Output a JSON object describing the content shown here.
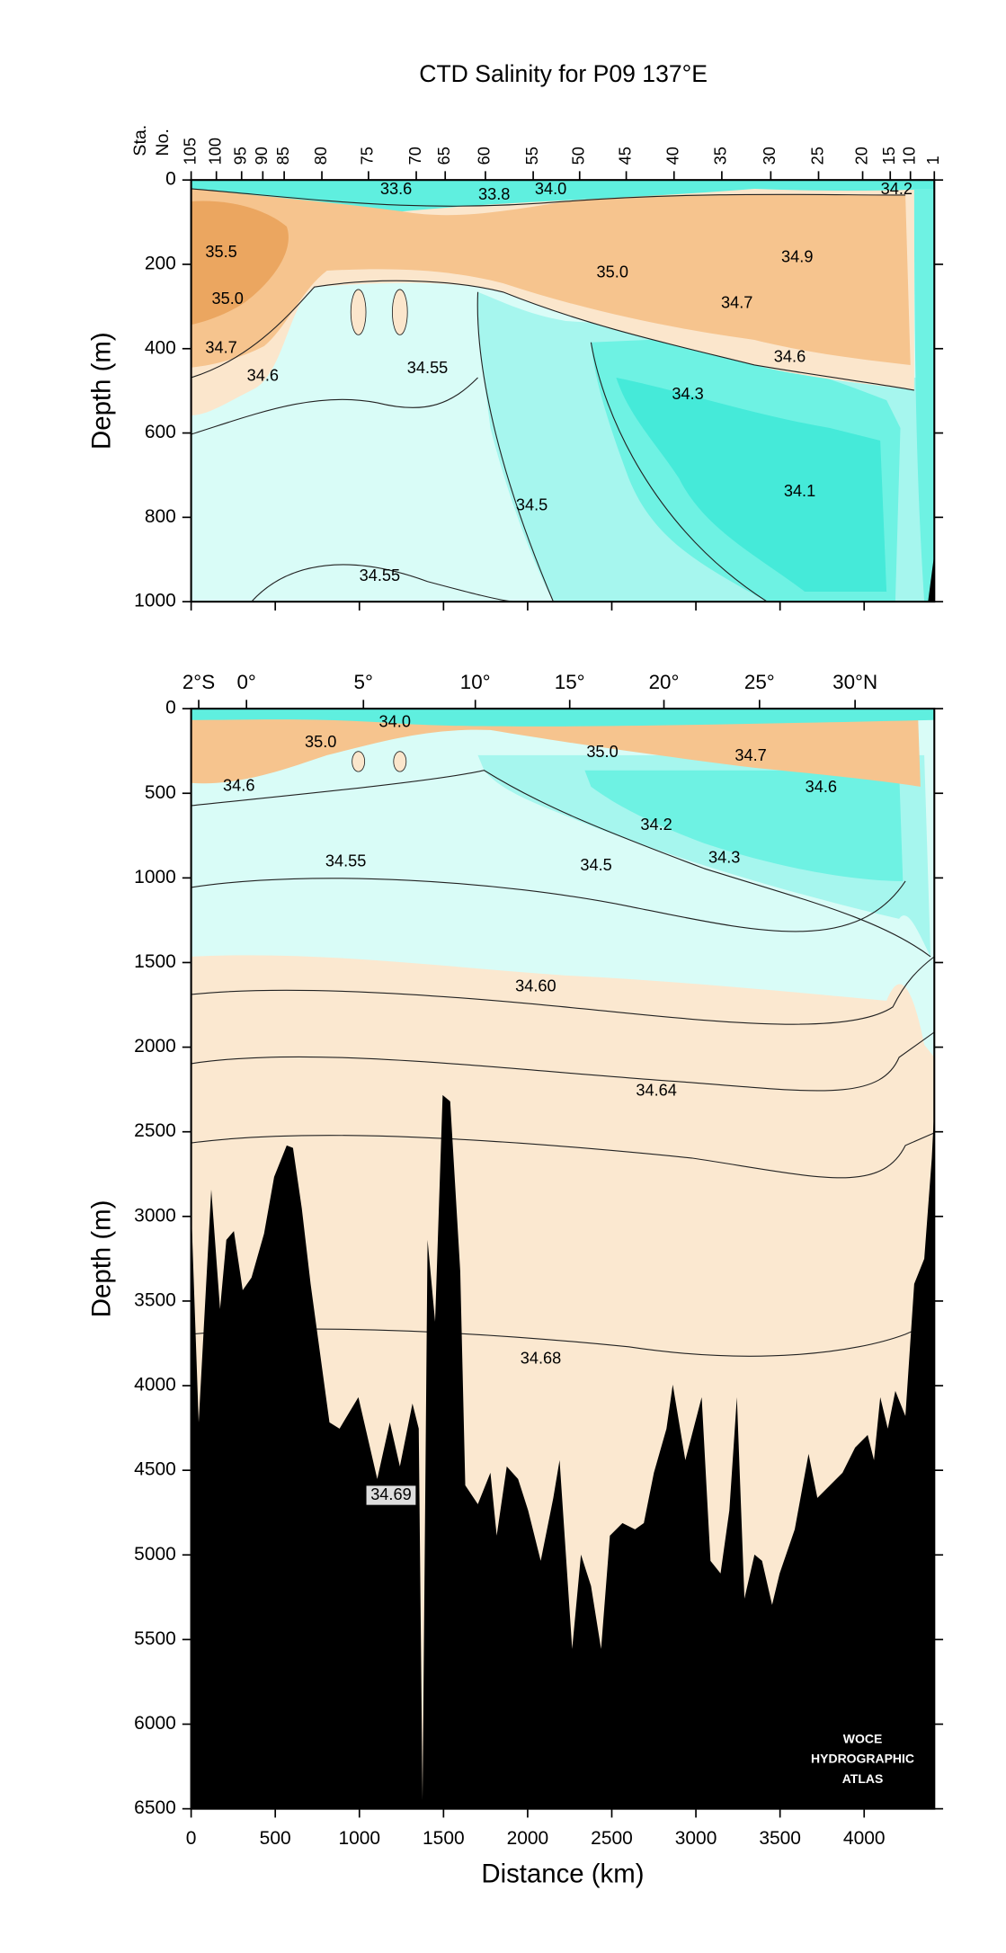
{
  "chart_data": [
    {
      "type": "contour",
      "title": "CTD Salinity for P09 137°E",
      "ylabel": "Depth (m)",
      "station_label": [
        "Sta.",
        "No."
      ],
      "xlim": [
        0,
        4417
      ],
      "ylim": [
        1000,
        0
      ],
      "yticks": [
        0,
        200,
        400,
        600,
        800,
        1000
      ],
      "stations": [
        {
          "value": 0,
          "label": "105"
        },
        {
          "value": 150,
          "label": "100"
        },
        {
          "value": 300,
          "label": "95"
        },
        {
          "value": 426,
          "label": "90"
        },
        {
          "value": 553,
          "label": "85"
        },
        {
          "value": 777,
          "label": "80"
        },
        {
          "value": 1054,
          "label": "75"
        },
        {
          "value": 1338,
          "label": "70"
        },
        {
          "value": 1510,
          "label": "65"
        },
        {
          "value": 1749,
          "label": "60"
        },
        {
          "value": 2033,
          "label": "55"
        },
        {
          "value": 2309,
          "label": "50"
        },
        {
          "value": 2586,
          "label": "45"
        },
        {
          "value": 2870,
          "label": "40"
        },
        {
          "value": 3154,
          "label": "35"
        },
        {
          "value": 3445,
          "label": "30"
        },
        {
          "value": 3729,
          "label": "25"
        },
        {
          "value": 3991,
          "label": "20"
        },
        {
          "value": 4155,
          "label": "15"
        },
        {
          "value": 4275,
          "label": "10"
        },
        {
          "value": 4417,
          "label": "1"
        }
      ],
      "contour_labels": [
        {
          "label": "33.6",
          "x": 1218,
          "y": 24
        },
        {
          "label": "33.8",
          "x": 1801,
          "y": 36
        },
        {
          "label": "34.0",
          "x": 2137,
          "y": 24
        },
        {
          "label": "34.2",
          "x": 4193,
          "y": 24
        },
        {
          "label": "35.5",
          "x": 179,
          "y": 173
        },
        {
          "label": "35.0",
          "x": 2504,
          "y": 221
        },
        {
          "label": "34.9",
          "x": 3602,
          "y": 185
        },
        {
          "label": "35.0",
          "x": 217,
          "y": 284
        },
        {
          "label": "34.7",
          "x": 3244,
          "y": 293
        },
        {
          "label": "34.7",
          "x": 179,
          "y": 400
        },
        {
          "label": "34.6",
          "x": 3558,
          "y": 421
        },
        {
          "label": "34.6",
          "x": 426,
          "y": 466
        },
        {
          "label": "34.55",
          "x": 1405,
          "y": 448
        },
        {
          "label": "34.3",
          "x": 2952,
          "y": 510
        },
        {
          "label": "34.1",
          "x": 3617,
          "y": 740
        },
        {
          "label": "34.5",
          "x": 2025,
          "y": 773
        },
        {
          "label": "34.55",
          "x": 1121,
          "y": 940
        }
      ]
    },
    {
      "type": "contour",
      "ylabel": "Depth (m)",
      "xlabel": "Distance (km)",
      "xlim": [
        0,
        4417
      ],
      "ylim": [
        6500,
        0
      ],
      "yticks": [
        0,
        500,
        1000,
        1500,
        2000,
        2500,
        3000,
        3500,
        4000,
        4500,
        5000,
        5500,
        6000,
        6500
      ],
      "xticks": [
        0,
        500,
        1000,
        1500,
        2000,
        2500,
        3000,
        3500,
        4000
      ],
      "lat_ticks": [
        {
          "value": 45,
          "label": "2°S"
        },
        {
          "value": 329,
          "label": "0°"
        },
        {
          "value": 1024,
          "label": "5°"
        },
        {
          "value": 1689,
          "label": "10°"
        },
        {
          "value": 2250,
          "label": "15°"
        },
        {
          "value": 2810,
          "label": "20°"
        },
        {
          "value": 3378,
          "label": "25°"
        },
        {
          "value": 3946,
          "label": "30°N"
        }
      ],
      "contour_labels": [
        {
          "label": "34.0",
          "x": 1211,
          "y": 82
        },
        {
          "label": "35.0",
          "x": 770,
          "y": 201
        },
        {
          "label": "35.0",
          "x": 2444,
          "y": 260
        },
        {
          "label": "34.7",
          "x": 3326,
          "y": 283
        },
        {
          "label": "34.6",
          "x": 284,
          "y": 461
        },
        {
          "label": "34.6",
          "x": 3744,
          "y": 469
        },
        {
          "label": "34.2",
          "x": 2765,
          "y": 692
        },
        {
          "label": "34.3",
          "x": 3169,
          "y": 885
        },
        {
          "label": "34.55",
          "x": 919,
          "y": 907
        },
        {
          "label": "34.5",
          "x": 2407,
          "y": 930
        },
        {
          "label": "34.60",
          "x": 2048,
          "y": 1644
        },
        {
          "label": "34.64",
          "x": 2765,
          "y": 2261
        },
        {
          "label": "34.68",
          "x": 2078,
          "y": 3845
        },
        {
          "label": "34.69",
          "x": 1188,
          "y": 4648,
          "boxed": true
        }
      ],
      "watermark": [
        "WOCE",
        "HYDROGRAPHIC",
        "ATLAS"
      ]
    }
  ]
}
